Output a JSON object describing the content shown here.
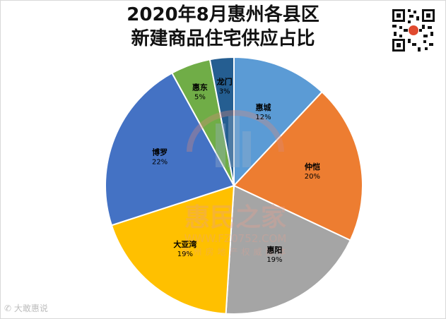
{
  "title": {
    "line1": "2020年8月惠州各县区",
    "line2": "新建商品住宅供应占比"
  },
  "chart_data": {
    "type": "pie",
    "title": "2020年8月惠州各县区新建商品住宅供应占比",
    "slices": [
      {
        "label": "惠城",
        "value": 12,
        "pct_label": "12%",
        "color": "#5b9bd5"
      },
      {
        "label": "仲恺",
        "value": 20,
        "pct_label": "20%",
        "color": "#ed7d31"
      },
      {
        "label": "惠阳",
        "value": 19,
        "pct_label": "19%",
        "color": "#a5a5a5"
      },
      {
        "label": "大亚湾",
        "value": 19,
        "pct_label": "19%",
        "color": "#ffc000"
      },
      {
        "label": "博罗",
        "value": 22,
        "pct_label": "22%",
        "color": "#4472c4"
      },
      {
        "label": "惠东",
        "value": 5,
        "pct_label": "5%",
        "color": "#70ad47"
      },
      {
        "label": "龙门",
        "value": 3,
        "pct_label": "3%",
        "color": "#255e91"
      }
    ],
    "start_angle_deg": 0,
    "direction": "clockwise"
  },
  "watermark": {
    "brand": "惠民之家",
    "url": "WWW.FZ0752.COM",
    "tagline": "惠州房地产权威媒体"
  },
  "footer": {
    "source": "大敢惠说"
  }
}
